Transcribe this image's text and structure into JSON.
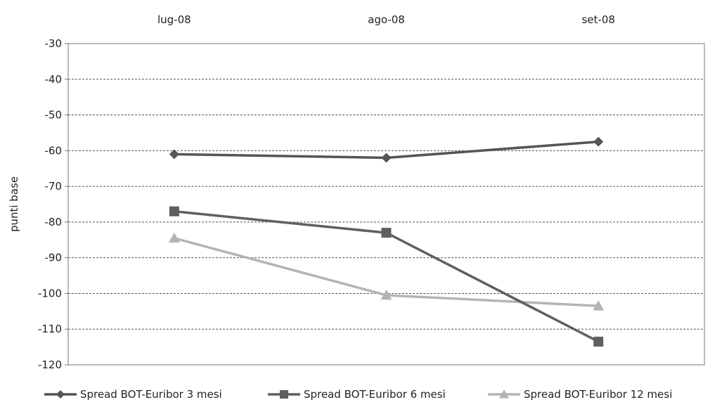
{
  "chart_data": {
    "type": "line",
    "categories": [
      "lug-08",
      "ago-08",
      "set-08"
    ],
    "category_axis_position": "top",
    "ylabel": "punti base",
    "ylim": [
      -120,
      -30
    ],
    "yticks": [
      -30,
      -40,
      -50,
      -60,
      -70,
      -80,
      -90,
      -100,
      -110,
      -120
    ],
    "grid": true,
    "legend_position": "bottom",
    "series": [
      {
        "name": "Spread BOT-Euribor 3 mesi",
        "values": [
          -61,
          -62,
          -57.5
        ],
        "color": "#555555",
        "marker": "diamond"
      },
      {
        "name": "Spread BOT-Euribor 6 mesi",
        "values": [
          -77,
          -83,
          -113.5
        ],
        "color": "#5f5f5f",
        "marker": "square"
      },
      {
        "name": "Spread BOT-Euribor 12 mesi",
        "values": [
          -84.5,
          -100.5,
          -103.5
        ],
        "color": "#b4b4b4",
        "marker": "triangle"
      }
    ]
  }
}
